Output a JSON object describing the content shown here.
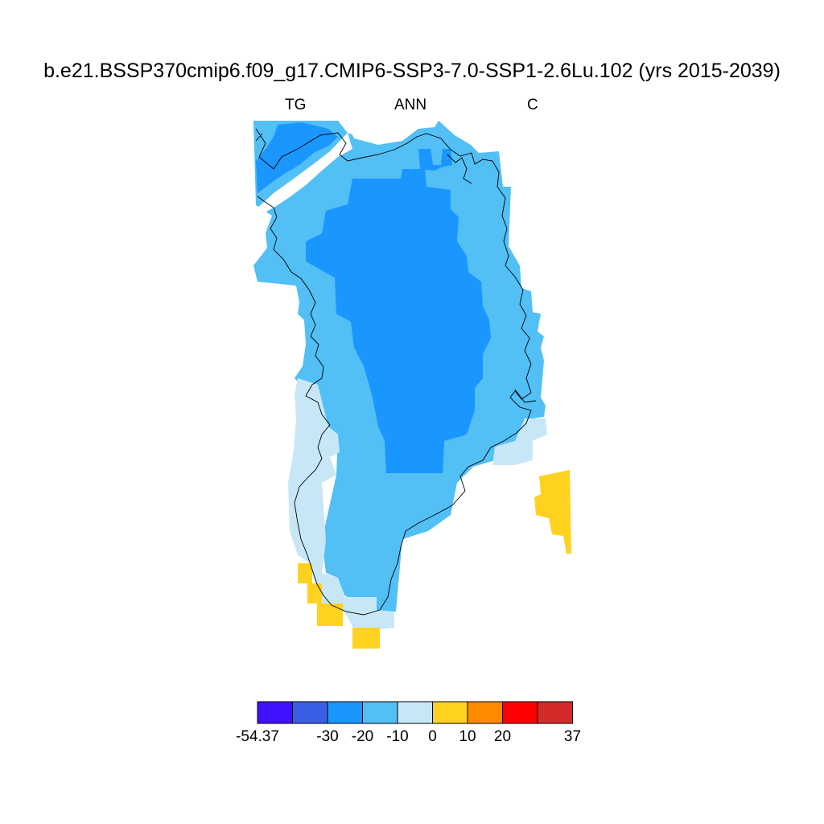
{
  "title": "b.e21.BSSP370cmip6.f09_g17.CMIP6-SSP3-7.0-SSP1-2.6Lu.102 (yrs 2015-2039)",
  "subtitle_left": "TG",
  "subtitle_center": "ANN",
  "subtitle_right": "C",
  "legend": {
    "colors": [
      "#4010ff",
      "#3a5ee6",
      "#1a96ff",
      "#52bff5",
      "#c7e7f7",
      "#ffd21f",
      "#ff8a00",
      "#ff0000",
      "#d42a2a"
    ],
    "tick_labels": [
      "-54.37",
      "-30",
      "-20",
      "-10",
      "0",
      "10",
      "20",
      "37"
    ],
    "tick_values": [
      -54.37,
      -30,
      -20,
      -10,
      0,
      10,
      20,
      37
    ],
    "level_bounds": [
      -54.37,
      -40,
      -30,
      -20,
      -10,
      0,
      10,
      20,
      30,
      37
    ]
  },
  "map_regions": [
    {
      "name": "ice-sheet-interior",
      "value_range": [
        -30,
        -20
      ],
      "color": "#1a96ff"
    },
    {
      "name": "ice-sheet-margin",
      "value_range": [
        -20,
        -10
      ],
      "color": "#52bff5"
    },
    {
      "name": "southwest-coast",
      "value_range": [
        -10,
        0
      ],
      "color": "#c7e7f7"
    },
    {
      "name": "southern-tip-cells",
      "value_range": [
        0,
        10
      ],
      "color": "#ffd21f"
    },
    {
      "name": "east-offshore-cells",
      "value_range": [
        0,
        10
      ],
      "color": "#ffd21f"
    }
  ]
}
